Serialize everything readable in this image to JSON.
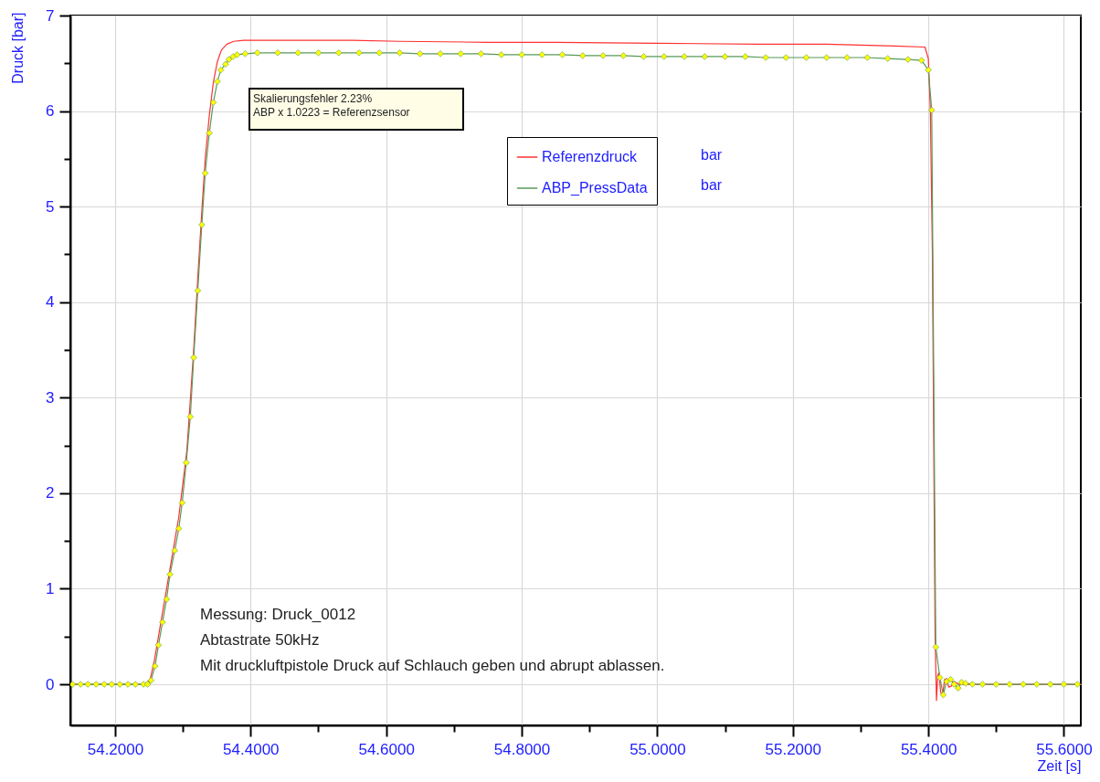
{
  "chart_data": {
    "type": "line",
    "xlabel": "Zeit [s]",
    "ylabel": "Druck [bar]",
    "xlim": [
      54.134,
      55.625
    ],
    "ylim": [
      -0.43,
      7
    ],
    "xticks": [
      {
        "value": 54.2,
        "label": "54.2000"
      },
      {
        "value": 54.3,
        "label": null
      },
      {
        "value": 54.4,
        "label": "54.4000"
      },
      {
        "value": 54.5,
        "label": null
      },
      {
        "value": 54.6,
        "label": "54.6000"
      },
      {
        "value": 54.7,
        "label": null
      },
      {
        "value": 54.8,
        "label": "54.8000"
      },
      {
        "value": 54.9,
        "label": null
      },
      {
        "value": 55.0,
        "label": "55.0000"
      },
      {
        "value": 55.1,
        "label": null
      },
      {
        "value": 55.2,
        "label": "55.2000"
      },
      {
        "value": 55.3,
        "label": null
      },
      {
        "value": 55.4,
        "label": "55.4000"
      },
      {
        "value": 55.5,
        "label": null
      },
      {
        "value": 55.6,
        "label": "55.6000"
      }
    ],
    "yticks": [
      0,
      {
        "value": 0.5,
        "label": null
      },
      1,
      {
        "value": 1.5,
        "label": null
      },
      2,
      {
        "value": 2.5,
        "label": null
      },
      3,
      {
        "value": 3.5,
        "label": null
      },
      4,
      {
        "value": 4.5,
        "label": null
      },
      5,
      {
        "value": 5.5,
        "label": null
      },
      6,
      {
        "value": 6.5,
        "label": null
      },
      7
    ],
    "grid": true,
    "legend": "top right",
    "line_style": "solid",
    "annotations": [
      "Skalierungsfehler 2.23%",
      "ABP x 1.0223 = Referenzsensor",
      "Messung: Druck_0012",
      "Abtastrate 50kHz",
      "Mit druckluftpistole Druck auf Schlauch geben und abrupt ablassen.",
      "bar",
      "bar"
    ],
    "series": [
      {
        "name": "Referenzdruck",
        "color": "#ff3030",
        "marker": "none",
        "x": [
          54.137,
          54.245,
          54.252,
          54.258,
          54.27,
          54.282,
          54.294,
          54.306,
          54.316,
          54.322,
          54.328,
          54.333,
          54.339,
          54.345,
          54.351,
          54.357,
          54.365,
          54.375,
          54.39,
          54.45,
          54.55,
          54.62,
          54.75,
          54.85,
          55.0,
          55.15,
          55.25,
          55.35,
          55.395,
          55.4,
          55.403,
          55.406,
          55.408,
          55.41,
          55.412,
          55.414,
          55.416,
          55.418,
          55.421,
          55.424,
          55.427,
          55.43,
          55.434,
          55.438,
          55.445,
          55.625
        ],
        "values": [
          0,
          0,
          0.06,
          0.25,
          0.75,
          1.25,
          1.75,
          2.45,
          3.5,
          4.25,
          4.95,
          5.5,
          5.95,
          6.3,
          6.52,
          6.64,
          6.7,
          6.73,
          6.74,
          6.74,
          6.74,
          6.73,
          6.72,
          6.72,
          6.71,
          6.7,
          6.7,
          6.68,
          6.67,
          6.55,
          6.0,
          4.5,
          2.5,
          0.5,
          -0.17,
          0.1,
          0.12,
          -0.08,
          -0.12,
          0.05,
          0.06,
          -0.03,
          -0.02,
          0.03,
          0,
          0
        ]
      },
      {
        "name": "ABP_PressData",
        "color": "#5a9a5a",
        "marker": "diamond",
        "x": [
          54.137,
          54.149,
          54.16,
          54.172,
          54.184,
          54.195,
          54.207,
          54.219,
          54.23,
          54.242,
          54.248,
          54.253,
          54.259,
          54.264,
          54.27,
          54.276,
          54.281,
          54.288,
          54.294,
          54.299,
          54.305,
          54.311,
          54.316,
          54.322,
          54.328,
          54.333,
          54.339,
          54.345,
          54.351,
          54.356,
          54.363,
          54.368,
          54.374,
          54.38,
          54.392,
          54.41,
          54.44,
          54.47,
          54.5,
          54.53,
          54.56,
          54.59,
          54.62,
          54.65,
          54.68,
          54.71,
          54.74,
          54.77,
          54.8,
          54.83,
          54.86,
          54.89,
          54.92,
          54.95,
          54.98,
          55.01,
          55.04,
          55.07,
          55.1,
          55.13,
          55.16,
          55.19,
          55.22,
          55.25,
          55.28,
          55.31,
          55.34,
          55.37,
          55.39,
          55.4,
          55.405,
          55.411,
          55.417,
          55.422,
          55.427,
          55.433,
          55.438,
          55.444,
          55.449,
          55.455,
          55.465,
          55.48,
          55.5,
          55.52,
          55.54,
          55.56,
          55.58,
          55.6,
          55.62
        ],
        "values": [
          0,
          0,
          0,
          0,
          0,
          0,
          0,
          0,
          0,
          0,
          0,
          0.04,
          0.19,
          0.41,
          0.65,
          0.89,
          1.15,
          1.4,
          1.63,
          1.9,
          2.32,
          2.8,
          3.42,
          4.12,
          4.81,
          5.35,
          5.77,
          6.09,
          6.31,
          6.43,
          6.49,
          6.54,
          6.57,
          6.59,
          6.6,
          6.61,
          6.61,
          6.61,
          6.61,
          6.61,
          6.61,
          6.61,
          6.61,
          6.6,
          6.6,
          6.6,
          6.6,
          6.59,
          6.59,
          6.59,
          6.59,
          6.58,
          6.58,
          6.58,
          6.57,
          6.57,
          6.57,
          6.57,
          6.57,
          6.57,
          6.56,
          6.56,
          6.56,
          6.56,
          6.56,
          6.56,
          6.55,
          6.54,
          6.53,
          6.43,
          6.01,
          0.39,
          0.07,
          -0.11,
          0.03,
          0.05,
          0,
          -0.04,
          0.02,
          0.01,
          0,
          0,
          0,
          0,
          0,
          0,
          0,
          0,
          0
        ]
      }
    ]
  }
}
